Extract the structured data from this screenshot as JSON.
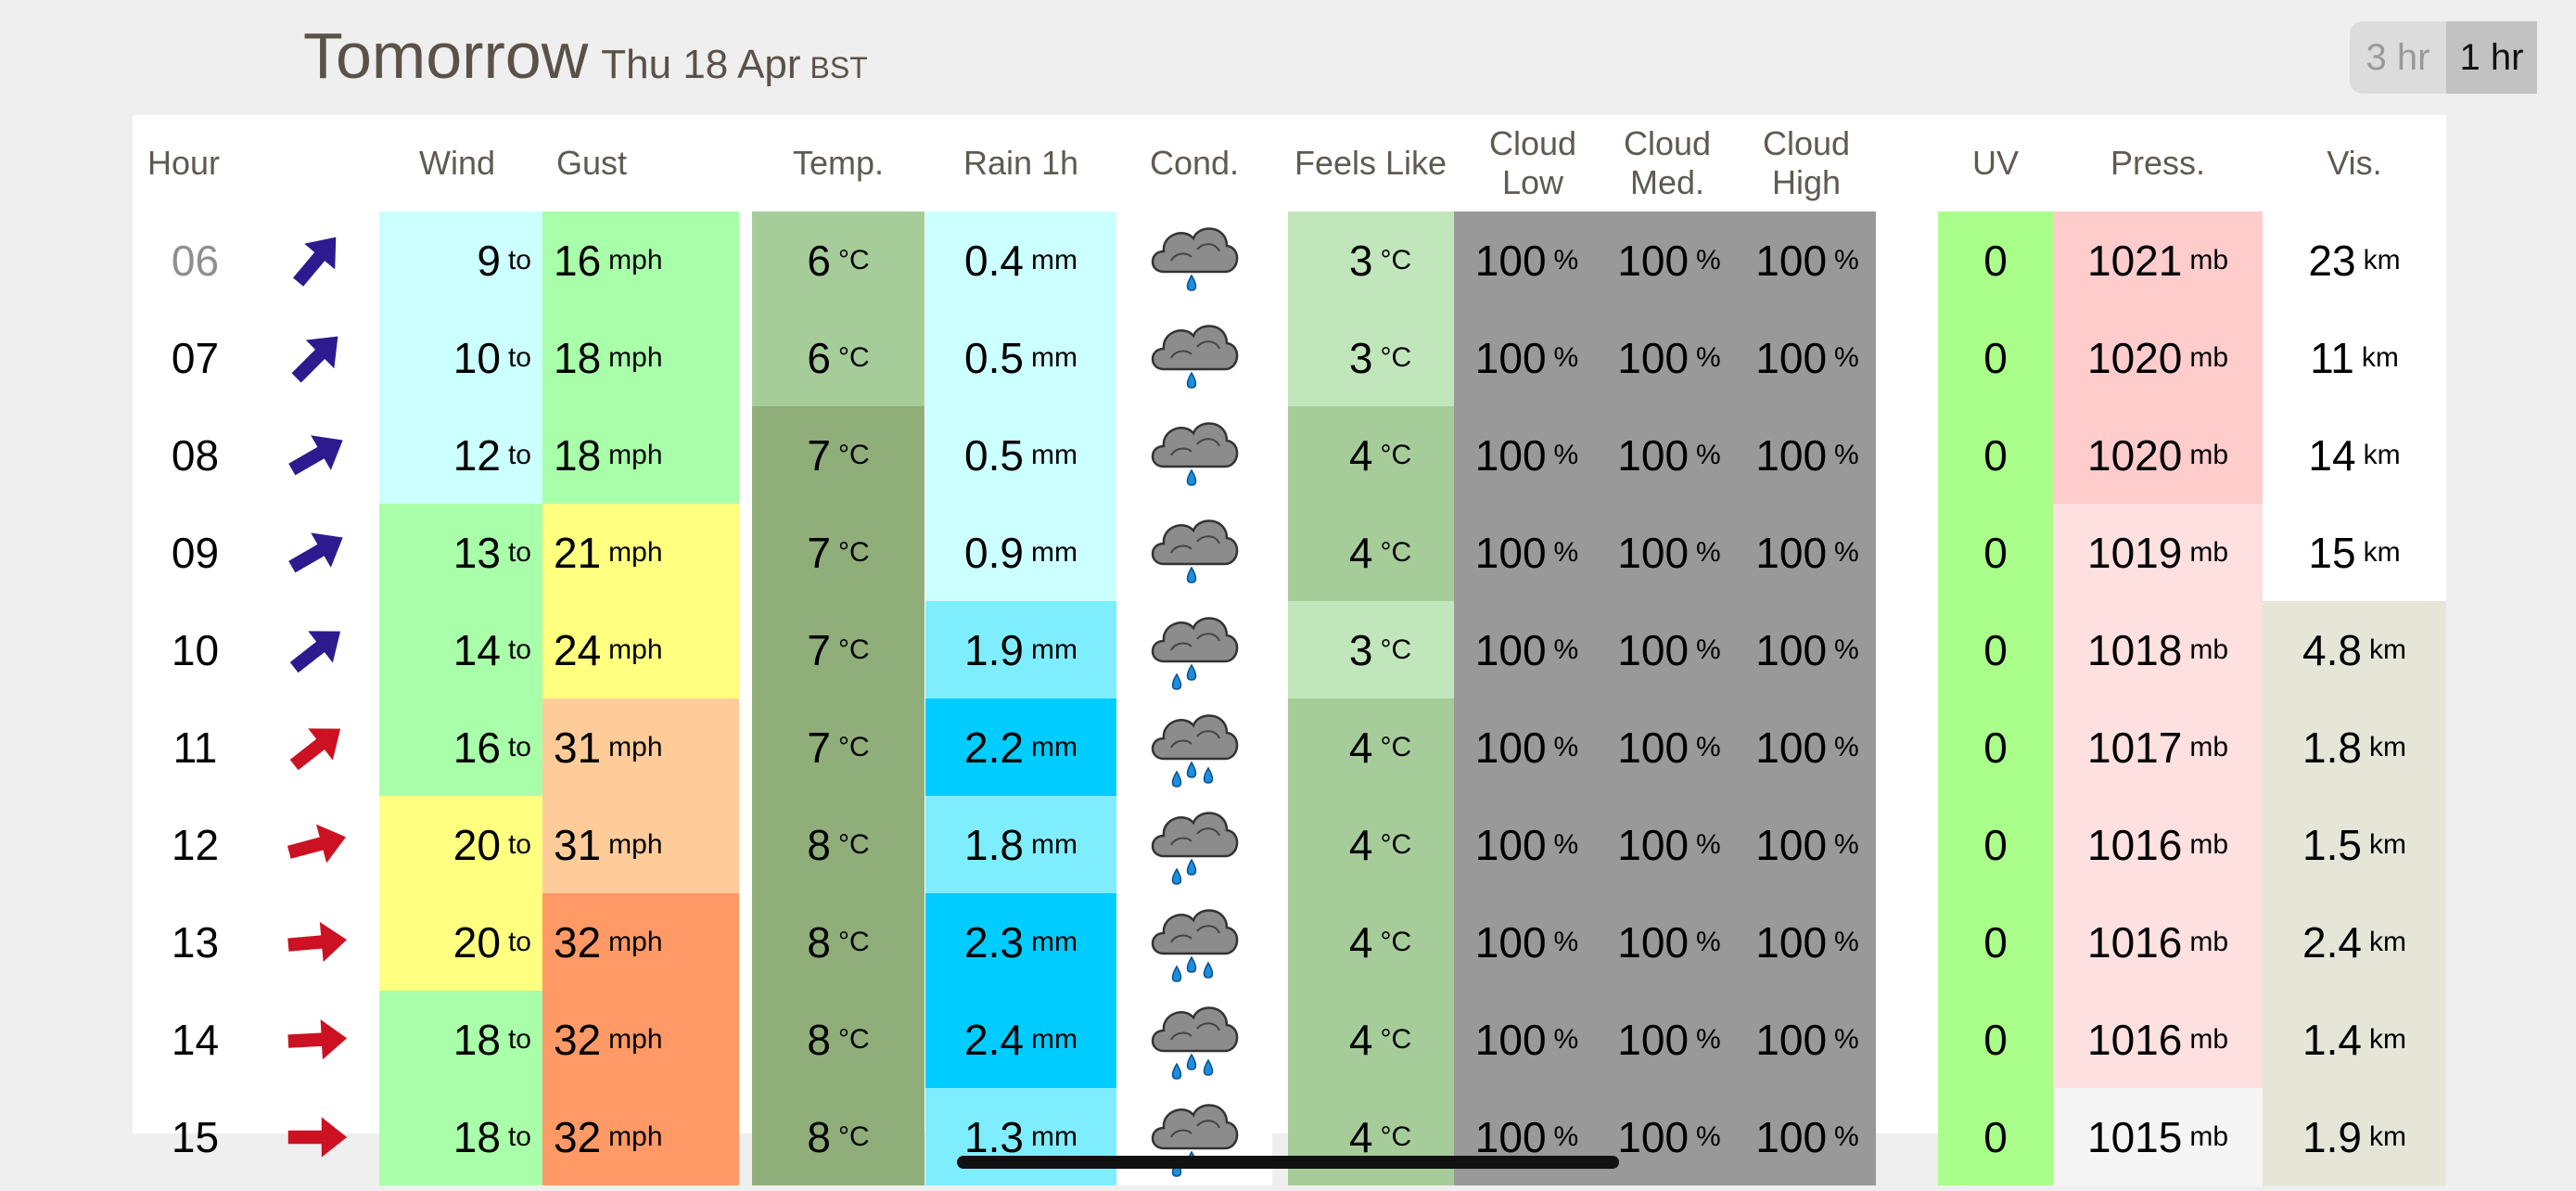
{
  "header": {
    "day": "Tomorrow",
    "date": "Thu 18 Apr",
    "timezone": "BST",
    "interval_options": [
      "3 hr",
      "1 hr"
    ],
    "interval_selected": "1 hr"
  },
  "columns": {
    "hour": "Hour",
    "wind": "Wind",
    "gust": "Gust",
    "temp": "Temp.",
    "rain": "Rain 1h",
    "cond": "Cond.",
    "feels": "Feels Like",
    "cloud_low": "Cloud Low",
    "cloud_med": "Cloud Med.",
    "cloud_high": "Cloud High",
    "uv": "UV",
    "press": "Press.",
    "vis": "Vis."
  },
  "units": {
    "to": "to",
    "mph": "mph",
    "degc": "°C",
    "mm": "mm",
    "pct": "%",
    "mb": "mb",
    "km": "km"
  },
  "rows": [
    {
      "hour": "06",
      "dim": true,
      "arrow": "#2e1a8f",
      "angle": -50,
      "wind": "9",
      "gust": "16",
      "temp": "6",
      "rain": "0.4",
      "cond": "light-rain-icon",
      "drops": 1,
      "feels": "3",
      "cl": "100",
      "cm": "100",
      "ch": "100",
      "uv": "0",
      "press": "1021",
      "vis": "23",
      "colors": {
        "wind": "#ccffff",
        "gust": "#a9ffa9",
        "temp": "#a5cc99",
        "rain": "#ccffff",
        "feels": "#c2e6bb",
        "press": "#ffcccc",
        "vis": "#ffffff"
      }
    },
    {
      "hour": "07",
      "arrow": "#2e1a8f",
      "angle": -45,
      "wind": "10",
      "gust": "18",
      "temp": "6",
      "rain": "0.5",
      "cond": "light-rain-icon",
      "drops": 1,
      "feels": "3",
      "cl": "100",
      "cm": "100",
      "ch": "100",
      "uv": "0",
      "press": "1020",
      "vis": "11",
      "colors": {
        "wind": "#ccffff",
        "gust": "#a9ffa9",
        "temp": "#a5cc99",
        "rain": "#ccffff",
        "feels": "#c2e6bb",
        "press": "#ffcccc",
        "vis": "#ffffff"
      }
    },
    {
      "hour": "08",
      "arrow": "#2e1a8f",
      "angle": -30,
      "wind": "12",
      "gust": "18",
      "temp": "7",
      "rain": "0.5",
      "cond": "light-rain-icon",
      "drops": 1,
      "feels": "4",
      "cl": "100",
      "cm": "100",
      "ch": "100",
      "uv": "0",
      "press": "1020",
      "vis": "14",
      "colors": {
        "wind": "#ccffff",
        "gust": "#a9ffa9",
        "temp": "#8fae7a",
        "rain": "#ccffff",
        "feels": "#a5cc99",
        "press": "#ffcccc",
        "vis": "#ffffff"
      }
    },
    {
      "hour": "09",
      "arrow": "#2e1a8f",
      "angle": -30,
      "wind": "13",
      "gust": "21",
      "temp": "7",
      "rain": "0.9",
      "cond": "light-rain-icon",
      "drops": 1,
      "feels": "4",
      "cl": "100",
      "cm": "100",
      "ch": "100",
      "uv": "0",
      "press": "1019",
      "vis": "15",
      "colors": {
        "wind": "#a9ffa9",
        "gust": "#ffff80",
        "temp": "#8fae7a",
        "rain": "#ccffff",
        "feels": "#a5cc99",
        "press": "#ffe0e0",
        "vis": "#ffffff"
      }
    },
    {
      "hour": "10",
      "arrow": "#2e1a8f",
      "angle": -38,
      "wind": "14",
      "gust": "24",
      "temp": "7",
      "rain": "1.9",
      "cond": "rain-icon",
      "drops": 2,
      "feels": "3",
      "cl": "100",
      "cm": "100",
      "ch": "100",
      "uv": "0",
      "press": "1018",
      "vis": "4.8",
      "colors": {
        "wind": "#a9ffa9",
        "gust": "#ffff80",
        "temp": "#8fae7a",
        "rain": "#7eeeff",
        "feels": "#c2e6bb",
        "press": "#ffe0e0",
        "vis": "#e6e6d8"
      }
    },
    {
      "hour": "11",
      "arrow": "#cc1122",
      "angle": -38,
      "wind": "16",
      "gust": "31",
      "temp": "7",
      "rain": "2.2",
      "cond": "heavy-rain-icon",
      "drops": 3,
      "feels": "4",
      "cl": "100",
      "cm": "100",
      "ch": "100",
      "uv": "0",
      "press": "1017",
      "vis": "1.8",
      "colors": {
        "wind": "#a9ffa9",
        "gust": "#ffcc99",
        "temp": "#8fae7a",
        "rain": "#00ccff",
        "feels": "#a5cc99",
        "press": "#ffe0e0",
        "vis": "#e6e6d8"
      }
    },
    {
      "hour": "12",
      "arrow": "#cc1122",
      "angle": -15,
      "wind": "20",
      "gust": "31",
      "temp": "8",
      "rain": "1.8",
      "cond": "rain-icon",
      "drops": 2,
      "feels": "4",
      "cl": "100",
      "cm": "100",
      "ch": "100",
      "uv": "0",
      "press": "1016",
      "vis": "1.5",
      "colors": {
        "wind": "#ffff80",
        "gust": "#ffcc99",
        "temp": "#8fae7a",
        "rain": "#7eeeff",
        "feels": "#a5cc99",
        "press": "#ffe0e0",
        "vis": "#e6e6d8"
      }
    },
    {
      "hour": "13",
      "arrow": "#cc1122",
      "angle": -5,
      "wind": "20",
      "gust": "32",
      "temp": "8",
      "rain": "2.3",
      "cond": "heavy-rain-icon",
      "drops": 3,
      "feels": "4",
      "cl": "100",
      "cm": "100",
      "ch": "100",
      "uv": "0",
      "press": "1016",
      "vis": "2.4",
      "colors": {
        "wind": "#ffff80",
        "gust": "#ff9966",
        "temp": "#8fae7a",
        "rain": "#00ccff",
        "feels": "#a5cc99",
        "press": "#ffe0e0",
        "vis": "#e6e6d8"
      }
    },
    {
      "hour": "14",
      "arrow": "#cc1122",
      "angle": -3,
      "wind": "18",
      "gust": "32",
      "temp": "8",
      "rain": "2.4",
      "cond": "heavy-rain-icon",
      "drops": 3,
      "feels": "4",
      "cl": "100",
      "cm": "100",
      "ch": "100",
      "uv": "0",
      "press": "1016",
      "vis": "1.4",
      "colors": {
        "wind": "#a9ffa9",
        "gust": "#ff9966",
        "temp": "#8fae7a",
        "rain": "#00ccff",
        "feels": "#a5cc99",
        "press": "#ffe0e0",
        "vis": "#e6e6d8"
      }
    },
    {
      "hour": "15",
      "arrow": "#cc1122",
      "angle": 0,
      "wind": "18",
      "gust": "32",
      "temp": "8",
      "rain": "1.3",
      "cond": "rain-icon",
      "drops": 2,
      "feels": "4",
      "cl": "100",
      "cm": "100",
      "ch": "100",
      "uv": "0",
      "press": "1015",
      "vis": "1.9",
      "colors": {
        "wind": "#a9ffa9",
        "gust": "#ff9966",
        "temp": "#8fae7a",
        "rain": "#7eeeff",
        "feels": "#a5cc99",
        "press": "#f5f5f5",
        "vis": "#e6e6d8"
      }
    }
  ],
  "fixed_colors": {
    "cloud": "#999999",
    "uv": "#a9ff89",
    "white": "#ffffff"
  }
}
